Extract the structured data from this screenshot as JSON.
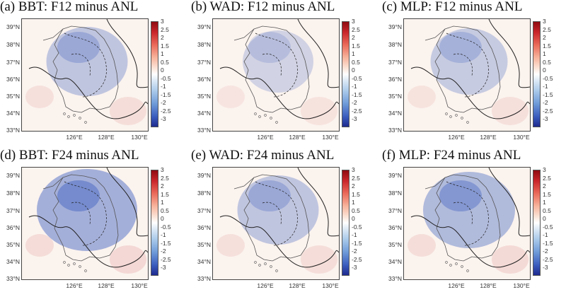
{
  "panels": [
    {
      "id": "a",
      "title": "(a) BBT: F12 minus ANL",
      "intensity": 0.45
    },
    {
      "id": "b",
      "title": "(b) WAD: F12 minus ANL",
      "intensity": 0.2
    },
    {
      "id": "c",
      "title": "(c) MLP: F12 minus ANL",
      "intensity": 0.35
    },
    {
      "id": "d",
      "title": "(d) BBT: F24 minus ANL",
      "intensity": 0.9
    },
    {
      "id": "e",
      "title": "(e) WAD: F24 minus ANL",
      "intensity": 0.45
    },
    {
      "id": "f",
      "title": "(f) MLP: F24 minus ANL",
      "intensity": 0.7
    }
  ],
  "y_ticks": [
    "39°N",
    "38°N",
    "37°N",
    "36°N",
    "35°N",
    "34°N",
    "33°N"
  ],
  "x_ticks": [
    "126°E",
    "128°E",
    "130°E"
  ],
  "colorbar_labels": [
    "3",
    "2.5",
    "2",
    "1.5",
    "1",
    "0.5",
    "0",
    "-0.5",
    "-1",
    "-1.5",
    "-2",
    "-2.5",
    "-3"
  ],
  "colors": {
    "positive": "#c9262b",
    "negative": "#3c5fbf",
    "coast": "#555555",
    "contour": "#222222"
  }
}
